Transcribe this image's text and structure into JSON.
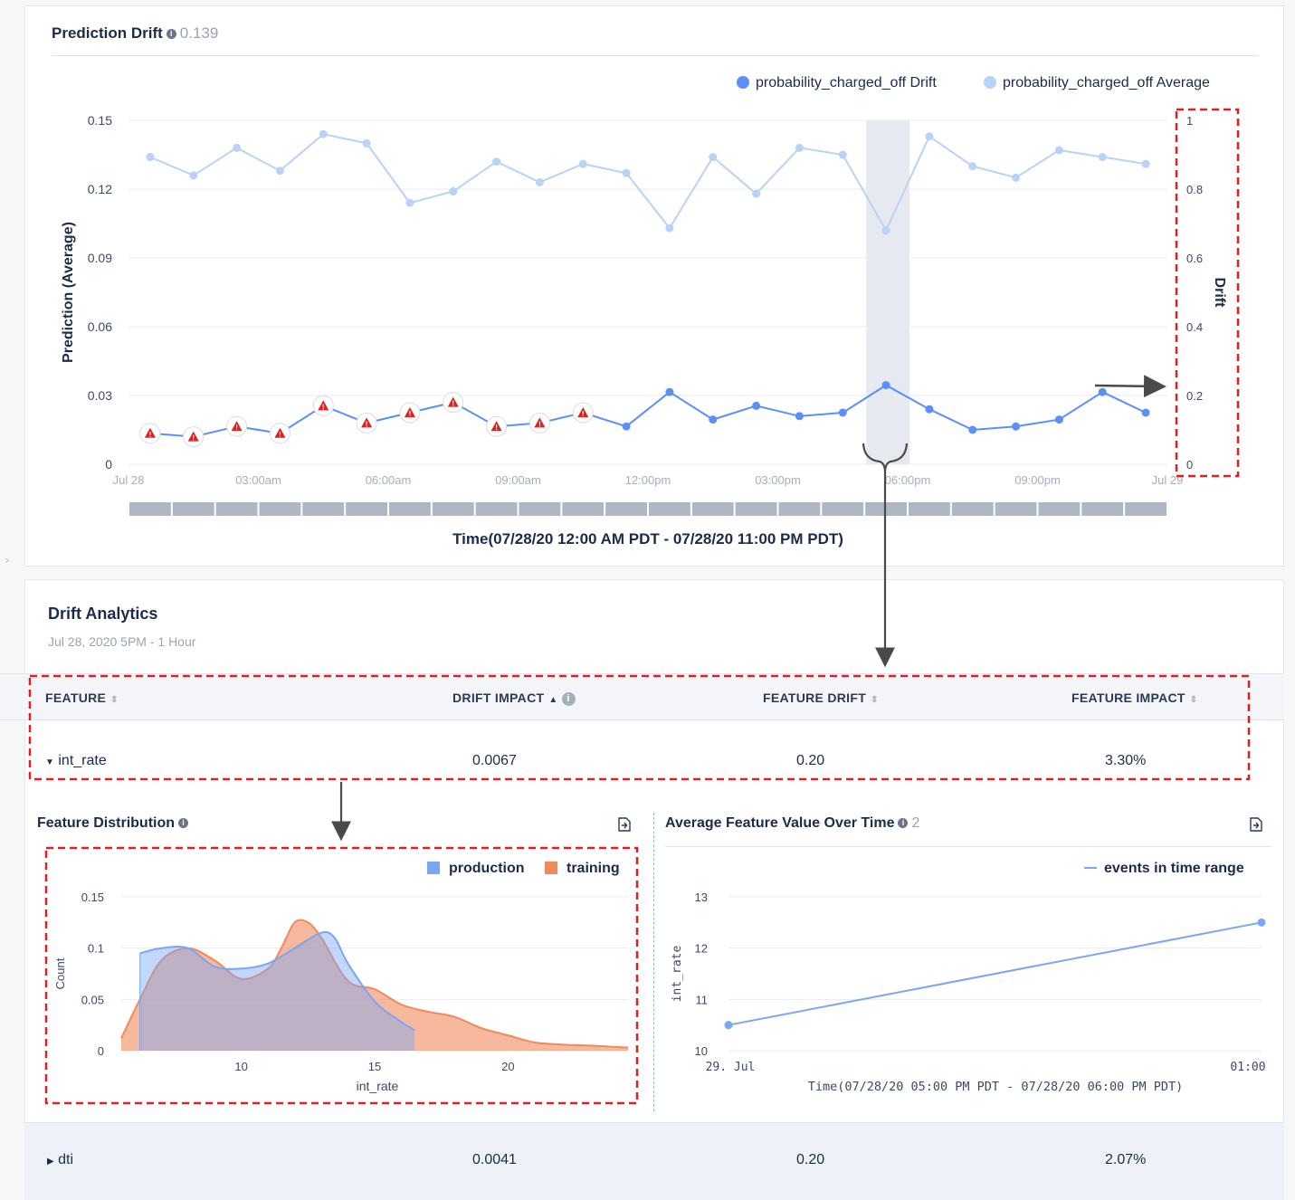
{
  "prediction_drift": {
    "title": "Prediction Drift",
    "value": "0.139",
    "legend_drift": "probability_charged_off Drift",
    "legend_average": "probability_charged_off Average",
    "y_left_label": "Prediction (Average)",
    "y_right_label": "Drift",
    "x_axis_title": "Time(07/28/20 12:00 AM PDT - 07/28/20 11:00 PM PDT)",
    "y_left_ticks": [
      "0.15",
      "0.12",
      "0.09",
      "0.06",
      "0.03",
      "0"
    ],
    "y_right_ticks": [
      "1",
      "0.8",
      "0.6",
      "0.4",
      "0.2",
      "0"
    ],
    "x_ticks": [
      "Jul 28",
      "03:00am",
      "06:00am",
      "09:00am",
      "12:00pm",
      "03:00pm",
      "06:00pm",
      "09:00pm",
      "Jul 29"
    ],
    "colors": {
      "drift": "#5b8ff9",
      "average": "#b9d2f7",
      "warning": "#e02020",
      "highlight": "#e6eaf0"
    }
  },
  "chart_data": [
    {
      "type": "line",
      "title": "Prediction Drift",
      "xlabel": "Time(07/28/20 12:00 AM PDT - 07/28/20 11:00 PM PDT)",
      "ylabel": "Prediction (Average)",
      "y2label": "Drift",
      "ylim": [
        0,
        0.15
      ],
      "y2lim": [
        0,
        1
      ],
      "x": [
        "00:00",
        "01:00",
        "02:00",
        "03:00",
        "04:00",
        "05:00",
        "06:00",
        "07:00",
        "08:00",
        "09:00",
        "10:00",
        "11:00",
        "12:00",
        "13:00",
        "14:00",
        "15:00",
        "16:00",
        "17:00",
        "18:00",
        "19:00",
        "20:00",
        "21:00",
        "22:00",
        "23:00"
      ],
      "series": [
        {
          "name": "probability_charged_off Average",
          "axis": "left",
          "values": [
            0.134,
            0.126,
            0.138,
            0.128,
            0.144,
            0.14,
            0.114,
            0.119,
            0.132,
            0.123,
            0.131,
            0.127,
            0.103,
            0.134,
            0.118,
            0.138,
            0.135,
            0.102,
            0.143,
            0.13,
            0.125,
            0.137,
            0.134,
            0.131
          ]
        },
        {
          "name": "probability_charged_off Drift",
          "axis": "right",
          "values": [
            0.09,
            0.08,
            0.11,
            0.09,
            0.17,
            0.12,
            0.15,
            0.18,
            0.11,
            0.12,
            0.15,
            0.11,
            0.21,
            0.13,
            0.17,
            0.14,
            0.15,
            0.23,
            0.16,
            0.1,
            0.11,
            0.13,
            0.21,
            0.15
          ],
          "warnings": [
            true,
            true,
            true,
            true,
            true,
            true,
            true,
            true,
            true,
            true,
            true,
            false,
            false,
            false,
            false,
            false,
            false,
            false,
            false,
            false,
            false,
            false,
            false,
            false
          ]
        }
      ],
      "highlight_x": "17:00",
      "legend": "top-right"
    },
    {
      "type": "area",
      "title": "Feature Distribution",
      "xlabel": "int_rate",
      "ylabel": "Count",
      "xlim": [
        5.5,
        24.5
      ],
      "ylim": [
        0,
        0.15
      ],
      "x_ticks": [
        "10",
        "15",
        "20"
      ],
      "y_ticks": [
        "0.15",
        "0.1",
        "0.05",
        "0"
      ],
      "series": [
        {
          "name": "production",
          "x": [
            6.2,
            7,
            8,
            9,
            10,
            11,
            12,
            13,
            13.5,
            14,
            15,
            16,
            16.5
          ],
          "values": [
            0.095,
            0.1,
            0.1,
            0.082,
            0.08,
            0.085,
            0.1,
            0.115,
            0.11,
            0.085,
            0.048,
            0.028,
            0.02
          ]
        },
        {
          "name": "training",
          "x": [
            5.5,
            6.2,
            7,
            8,
            9,
            10,
            11,
            11.5,
            12,
            12.5,
            13,
            14,
            15,
            16,
            17,
            18,
            19,
            20,
            21,
            22,
            23,
            24.5
          ],
          "values": [
            0.012,
            0.05,
            0.088,
            0.1,
            0.088,
            0.07,
            0.08,
            0.1,
            0.125,
            0.125,
            0.11,
            0.068,
            0.06,
            0.045,
            0.038,
            0.033,
            0.022,
            0.015,
            0.008,
            0.006,
            0.005,
            0.003
          ]
        }
      ],
      "legend": "top-right"
    },
    {
      "type": "line",
      "title": "Average Feature Value Over Time",
      "xlabel": "Time(07/28/20 05:00 PM PDT - 07/28/20 06:00 PM PDT)",
      "ylabel": "int_rate",
      "ylim": [
        10,
        13
      ],
      "x": [
        "29. Jul",
        "01:00"
      ],
      "series": [
        {
          "name": "events in time range",
          "values": [
            10.5,
            12.5
          ]
        }
      ],
      "legend": "top-right"
    }
  ],
  "analytics": {
    "title": "Drift Analytics",
    "subtitle": "Jul 28, 2020 5PM - 1 Hour",
    "columns": [
      "FEATURE",
      "DRIFT IMPACT",
      "FEATURE DRIFT",
      "FEATURE IMPACT"
    ],
    "sort_icon": "sort-icon",
    "sort_asc_icon": "▲",
    "rows": [
      {
        "feature": "int_rate",
        "drift_impact": "0.0067",
        "feature_drift": "0.20",
        "feature_impact": "3.30%",
        "expanded": true
      },
      {
        "feature": "dti",
        "drift_impact": "0.0041",
        "feature_drift": "0.20",
        "feature_impact": "2.07%",
        "expanded": false
      }
    ],
    "feature_distribution": {
      "title": "Feature Distribution",
      "legend_production": "production",
      "legend_training": "training",
      "xlabel": "int_rate",
      "ylabel": "Count",
      "colors": {
        "production": "#7aa6f5",
        "training": "#f08a5d"
      }
    },
    "avg_feature": {
      "title": "Average Feature Value Over Time",
      "count": "2",
      "legend": "events in time range",
      "ylabel": "int_rate",
      "xlabel": "Time(07/28/20 05:00 PM PDT - 07/28/20 06:00 PM PDT)",
      "y_ticks": [
        "13",
        "12",
        "11",
        "10"
      ],
      "x_ticks": [
        "29. Jul",
        "01:00"
      ]
    }
  }
}
